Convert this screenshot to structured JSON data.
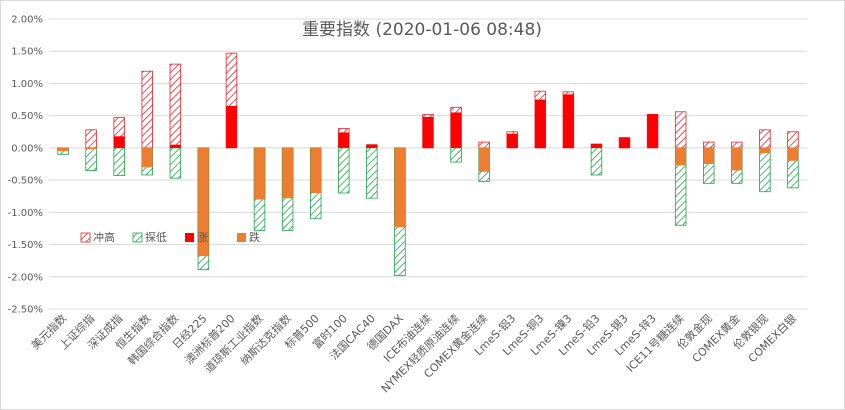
{
  "chart_data": {
    "type": "bar",
    "title": "重要指数 (2020-01-06 08:48)",
    "xlabel": "",
    "ylabel": "",
    "ylim": [
      -0.025,
      0.02
    ],
    "ytick_step": 0.005,
    "ytick_labels": [
      "-2.50%",
      "-2.00%",
      "-1.50%",
      "-1.00%",
      "-0.50%",
      "0.00%",
      "0.50%",
      "1.00%",
      "1.50%",
      "2.00%"
    ],
    "grid": true,
    "legend_position": "lower-left inside plot",
    "categories": [
      "美元指数",
      "上证综指",
      "深证成指",
      "恒生指数",
      "韩国综合指数",
      "日经225",
      "澳洲标普200",
      "道琼斯工业指数",
      "纳斯达克指数",
      "标普500",
      "富时100",
      "法国CAC40",
      "德国DAX",
      "ICE布油连续",
      "NYMEX轻质原油连续",
      "COMEX黄金连续",
      "LmeS-铝3",
      "LmeS-铜3",
      "LmeS-镍3",
      "LmeS-铅3",
      "LmeS-锡3",
      "LmeS-锌3",
      "ICE11号糖连续",
      "伦敦金现",
      "COMEX黄金",
      "伦敦银现",
      "COMEX白银"
    ],
    "series": [
      {
        "name": "冲高",
        "key": "high",
        "color": "#e8202a",
        "pattern": "hatch",
        "values": [
          -0.0005,
          0.0028,
          0.0047,
          0.0119,
          0.013,
          -0.0168,
          0.0147,
          -0.008,
          -0.0078,
          -0.007,
          0.003,
          0.0005,
          -0.0123,
          0.0052,
          0.0063,
          0.0009,
          0.0025,
          0.0088,
          0.0087,
          0.0006,
          0.0016,
          0.0052,
          0.0056,
          0.0009,
          0.0009,
          0.0028,
          0.0025
        ]
      },
      {
        "name": "探低",
        "key": "low",
        "color": "#1fa34a",
        "pattern": "hatch",
        "values": [
          -0.001,
          -0.0035,
          -0.0043,
          -0.0042,
          -0.0047,
          -0.0189,
          0.0,
          -0.0128,
          -0.0128,
          -0.011,
          -0.007,
          -0.0078,
          -0.0198,
          0.0,
          -0.0022,
          -0.0052,
          0.0,
          0.0,
          0.0,
          -0.0042,
          0.0,
          0.0,
          -0.012,
          -0.0055,
          -0.0055,
          -0.0068,
          -0.0062
        ]
      },
      {
        "name": "涨",
        "key": "up",
        "color": "#ff0000",
        "pattern": "solid",
        "values": [
          0,
          0,
          0.0018,
          0,
          0.0005,
          0,
          0.0065,
          0,
          0,
          0,
          0.0024,
          0.0005,
          0,
          0.0048,
          0.0055,
          0,
          0.0022,
          0.0075,
          0.0083,
          0.0006,
          0.0016,
          0.0052,
          0,
          0,
          0,
          0,
          0
        ]
      },
      {
        "name": "跌",
        "key": "down",
        "color": "#ed7d31",
        "pattern": "solid",
        "values": [
          -0.0005,
          -0.0002,
          0,
          -0.003,
          0,
          -0.0168,
          0,
          -0.008,
          -0.0078,
          -0.007,
          0,
          0,
          -0.0123,
          0,
          0,
          -0.0037,
          0,
          0,
          0,
          0,
          0,
          0,
          -0.0027,
          -0.0025,
          -0.0035,
          -0.0008,
          -0.002
        ]
      }
    ]
  }
}
